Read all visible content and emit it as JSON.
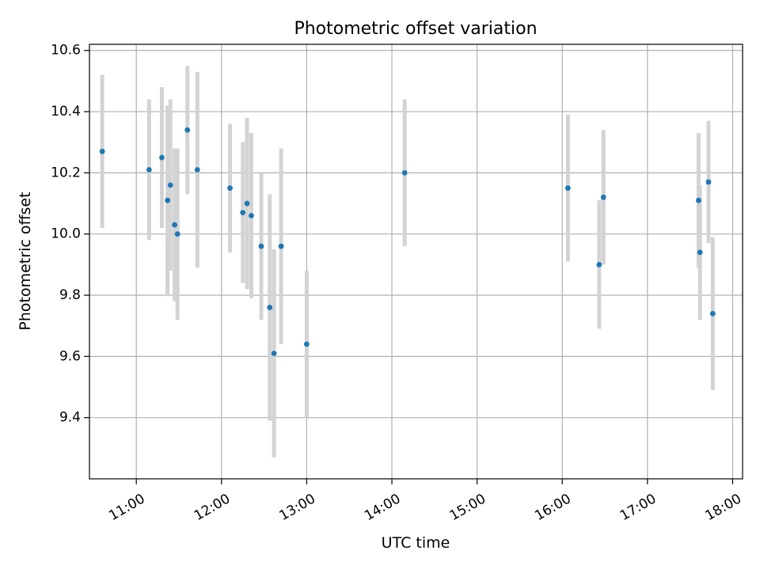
{
  "chart_data": {
    "type": "scatter",
    "title": "Photometric offset variation",
    "xlabel": "UTC time",
    "ylabel": "Photometric offset",
    "x_axis_kind": "time",
    "xlim": [
      "10:27",
      "18:07"
    ],
    "ylim": [
      9.2,
      10.62
    ],
    "x_ticks": [
      "11:00",
      "12:00",
      "13:00",
      "14:00",
      "15:00",
      "16:00",
      "17:00",
      "18:00"
    ],
    "y_ticks": [
      "9.4",
      "9.6",
      "9.8",
      "10.0",
      "10.2",
      "10.4",
      "10.6"
    ],
    "grid": true,
    "legend": "none",
    "colors": {
      "point": "#1f77b4",
      "errorbar": "#d3d3d3",
      "grid": "#b0b0b0"
    },
    "series": [
      {
        "points": [
          {
            "x": "10:36",
            "y": 10.27,
            "err": 0.25
          },
          {
            "x": "11:09",
            "y": 10.21,
            "err": 0.23
          },
          {
            "x": "11:18",
            "y": 10.25,
            "err": 0.23
          },
          {
            "x": "11:22",
            "y": 10.11,
            "err": 0.31
          },
          {
            "x": "11:24",
            "y": 10.16,
            "err": 0.28
          },
          {
            "x": "11:27",
            "y": 10.03,
            "err": 0.25
          },
          {
            "x": "11:29",
            "y": 10.0,
            "err": 0.28
          },
          {
            "x": "11:36",
            "y": 10.34,
            "err": 0.21
          },
          {
            "x": "11:43",
            "y": 10.21,
            "err": 0.32
          },
          {
            "x": "12:06",
            "y": 10.15,
            "err": 0.21
          },
          {
            "x": "12:15",
            "y": 10.07,
            "err": 0.23
          },
          {
            "x": "12:18",
            "y": 10.1,
            "err": 0.28
          },
          {
            "x": "12:21",
            "y": 10.06,
            "err": 0.27
          },
          {
            "x": "12:28",
            "y": 9.96,
            "err": 0.24
          },
          {
            "x": "12:34",
            "y": 9.76,
            "err": 0.37
          },
          {
            "x": "12:37",
            "y": 9.61,
            "err": 0.34
          },
          {
            "x": "12:42",
            "y": 9.96,
            "err": 0.32
          },
          {
            "x": "13:00",
            "y": 9.64,
            "err": 0.24
          },
          {
            "x": "14:09",
            "y": 10.2,
            "err": 0.24
          },
          {
            "x": "16:04",
            "y": 10.15,
            "err": 0.24
          },
          {
            "x": "16:26",
            "y": 9.9,
            "err": 0.21
          },
          {
            "x": "16:29",
            "y": 10.12,
            "err": 0.22
          },
          {
            "x": "17:36",
            "y": 10.11,
            "err": 0.22
          },
          {
            "x": "17:37",
            "y": 9.94,
            "err": 0.22
          },
          {
            "x": "17:43",
            "y": 10.17,
            "err": 0.2
          },
          {
            "x": "17:46",
            "y": 9.74,
            "err": 0.25
          }
        ]
      }
    ]
  }
}
